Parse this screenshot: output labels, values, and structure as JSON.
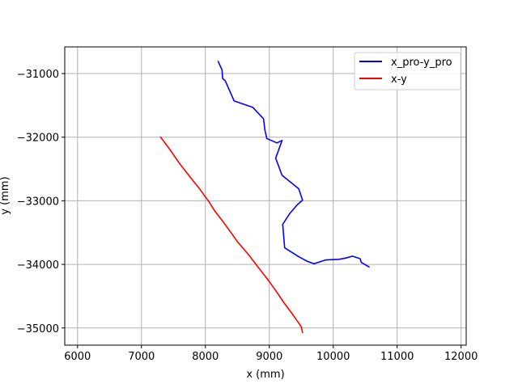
{
  "chart_data": {
    "type": "line",
    "xlabel": "x (mm)",
    "ylabel": "y (mm)",
    "xlim": [
      5800,
      12080
    ],
    "ylim": [
      -35270,
      -30580
    ],
    "xticks": [
      6000,
      7000,
      8000,
      9000,
      10000,
      11000,
      12000
    ],
    "xtick_labels": [
      "6000",
      "7000",
      "8000",
      "9000",
      "10000",
      "11000",
      "12000"
    ],
    "yticks": [
      -31000,
      -32000,
      -33000,
      -34000,
      -35000
    ],
    "ytick_labels": [
      "−31000",
      "−32000",
      "−33000",
      "−34000",
      "−35000"
    ],
    "grid": true,
    "legend_position": "top-right",
    "series": [
      {
        "name": "x_pro-y_pro",
        "color": "#0000ff",
        "x": [
          8200,
          8260,
          8270,
          8310,
          8450,
          8740,
          8910,
          8930,
          8960,
          9120,
          9200,
          9100,
          9200,
          9460,
          9520,
          9440,
          9320,
          9210,
          9240,
          9460,
          9590,
          9700,
          9880,
          10090,
          10200,
          10300,
          10420,
          10440,
          10560
        ],
        "y": [
          -30810,
          -30940,
          -31080,
          -31110,
          -31430,
          -31530,
          -31710,
          -31880,
          -32020,
          -32090,
          -32050,
          -32330,
          -32600,
          -32810,
          -32990,
          -33060,
          -33200,
          -33370,
          -33740,
          -33880,
          -33950,
          -33990,
          -33930,
          -33920,
          -33900,
          -33870,
          -33910,
          -33970,
          -34040
        ]
      },
      {
        "name": "x-y",
        "color": "#ff0000",
        "x": [
          7300,
          7450,
          7600,
          7780,
          7900,
          8010,
          8060,
          8140,
          8270,
          8400,
          8500,
          8670,
          8830,
          9000,
          9120,
          9220,
          9360,
          9500,
          9520
        ],
        "y": [
          -32000,
          -32200,
          -32420,
          -32650,
          -32800,
          -32950,
          -33020,
          -33150,
          -33320,
          -33500,
          -33640,
          -33840,
          -34050,
          -34270,
          -34440,
          -34590,
          -34780,
          -34980,
          -35070
        ]
      }
    ]
  }
}
